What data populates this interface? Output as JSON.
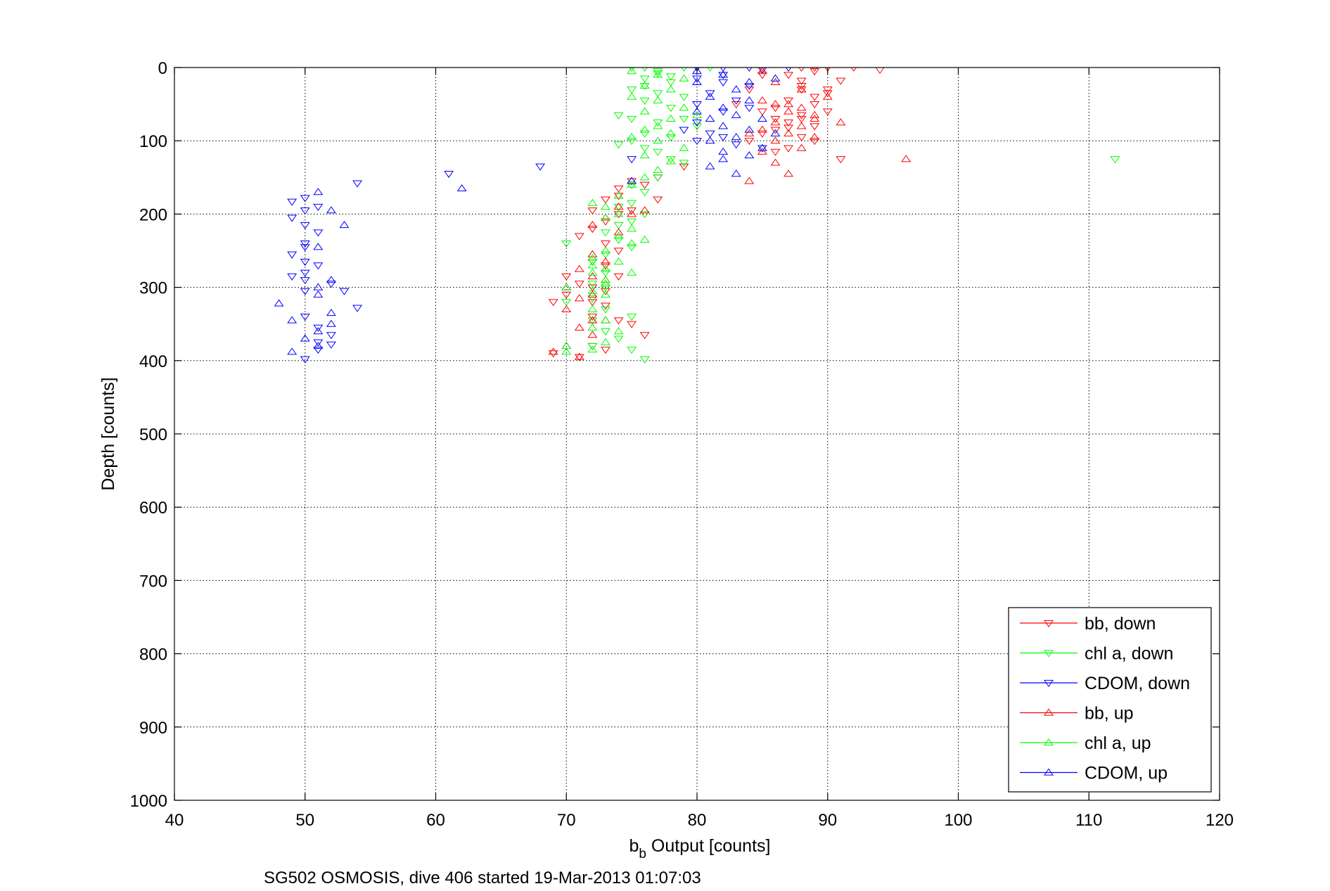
{
  "chart_data": {
    "type": "scatter",
    "title": "",
    "subtitle": "SG502 OSMOSIS, dive 406 started 19-Mar-2013 01:07:03",
    "xlabel_main": "b",
    "xlabel_sub": "b",
    "xlabel_rest": " Output [counts]",
    "ylabel": "Depth [counts]",
    "xlim": [
      40,
      120
    ],
    "ylim": [
      0,
      1000
    ],
    "y_reversed": true,
    "grid": true,
    "legend_position": "bottom-right",
    "x_ticks": [
      40,
      50,
      60,
      70,
      80,
      90,
      100,
      110,
      120
    ],
    "x_tick_labels": [
      "40",
      "50",
      "60",
      "70",
      "80",
      "90",
      "100",
      "110",
      "120"
    ],
    "y_ticks": [
      0,
      100,
      200,
      300,
      400,
      500,
      600,
      700,
      800,
      900,
      1000
    ],
    "y_tick_labels": [
      "0",
      "100",
      "200",
      "300",
      "400",
      "500",
      "600",
      "700",
      "800",
      "900",
      "1000"
    ],
    "series": [
      {
        "name": "bb, down",
        "color": "#ff0000",
        "marker": "triangle-down",
        "points": [
          [
            88,
            0
          ],
          [
            89,
            0
          ],
          [
            90,
            0
          ],
          [
            92,
            0
          ],
          [
            94,
            3
          ],
          [
            85,
            0
          ],
          [
            87,
            10
          ],
          [
            88,
            18
          ],
          [
            89,
            5
          ],
          [
            91,
            18
          ],
          [
            90,
            30
          ],
          [
            88,
            25
          ],
          [
            89,
            40
          ],
          [
            90,
            35
          ],
          [
            87,
            45
          ],
          [
            86,
            55
          ],
          [
            85,
            60
          ],
          [
            88,
            70
          ],
          [
            87,
            75
          ],
          [
            89,
            80
          ],
          [
            86,
            85
          ],
          [
            88,
            95
          ],
          [
            85,
            90
          ],
          [
            84,
            100
          ],
          [
            89,
            100
          ],
          [
            87,
            110
          ],
          [
            86,
            115
          ],
          [
            91,
            125
          ],
          [
            79,
            135
          ],
          [
            77,
            150
          ],
          [
            75,
            155
          ],
          [
            76,
            160
          ],
          [
            77,
            180
          ],
          [
            74,
            165
          ],
          [
            74,
            175
          ],
          [
            75,
            195
          ],
          [
            73,
            180
          ],
          [
            74,
            200
          ],
          [
            72,
            195
          ],
          [
            73,
            210
          ],
          [
            72,
            220
          ],
          [
            71,
            230
          ],
          [
            73,
            240
          ],
          [
            74,
            250
          ],
          [
            72,
            265
          ],
          [
            73,
            270
          ],
          [
            74,
            285
          ],
          [
            70,
            285
          ],
          [
            72,
            300
          ],
          [
            73,
            305
          ],
          [
            71,
            295
          ],
          [
            72,
            320
          ],
          [
            70,
            310
          ],
          [
            69,
            320
          ],
          [
            73,
            325
          ],
          [
            72,
            340
          ],
          [
            74,
            345
          ],
          [
            75,
            350
          ],
          [
            76,
            365
          ],
          [
            72,
            380
          ],
          [
            73,
            385
          ],
          [
            71,
            395
          ],
          [
            69,
            390
          ],
          [
            85,
            10
          ],
          [
            84,
            30
          ],
          [
            83,
            50
          ],
          [
            86,
            70
          ],
          [
            88,
            65
          ],
          [
            87,
            82
          ],
          [
            89,
            50
          ],
          [
            90,
            60
          ],
          [
            88,
            30
          ]
        ]
      },
      {
        "name": "chl a, down",
        "color": "#00ff00",
        "marker": "triangle-down",
        "points": [
          [
            75,
            0
          ],
          [
            76,
            0
          ],
          [
            77,
            5
          ],
          [
            79,
            0
          ],
          [
            81,
            0
          ],
          [
            76,
            15
          ],
          [
            78,
            20
          ],
          [
            75,
            30
          ],
          [
            77,
            35
          ],
          [
            79,
            40
          ],
          [
            76,
            45
          ],
          [
            74,
            65
          ],
          [
            75,
            70
          ],
          [
            77,
            75
          ],
          [
            76,
            90
          ],
          [
            78,
            95
          ],
          [
            75,
            100
          ],
          [
            74,
            105
          ],
          [
            76,
            110
          ],
          [
            77,
            115
          ],
          [
            78,
            125
          ],
          [
            79,
            130
          ],
          [
            77,
            150
          ],
          [
            75,
            160
          ],
          [
            76,
            170
          ],
          [
            75,
            185
          ],
          [
            74,
            190
          ],
          [
            76,
            200
          ],
          [
            75,
            210
          ],
          [
            74,
            215
          ],
          [
            73,
            225
          ],
          [
            74,
            235
          ],
          [
            75,
            245
          ],
          [
            73,
            255
          ],
          [
            72,
            265
          ],
          [
            73,
            280
          ],
          [
            72,
            295
          ],
          [
            73,
            300
          ],
          [
            72,
            315
          ],
          [
            73,
            330
          ],
          [
            72,
            345
          ],
          [
            75,
            340
          ],
          [
            73,
            360
          ],
          [
            74,
            370
          ],
          [
            72,
            380
          ],
          [
            75,
            385
          ],
          [
            76,
            398
          ],
          [
            70,
            240
          ],
          [
            70,
            320
          ],
          [
            112,
            125
          ],
          [
            78,
            55
          ],
          [
            79,
            70
          ],
          [
            80,
            80
          ],
          [
            76,
            25
          ],
          [
            77,
            8
          ],
          [
            78,
            12
          ]
        ]
      },
      {
        "name": "CDOM, down",
        "color": "#0000ff",
        "marker": "triangle-down",
        "points": [
          [
            80,
            0
          ],
          [
            82,
            0
          ],
          [
            84,
            0
          ],
          [
            85,
            3
          ],
          [
            87,
            0
          ],
          [
            80,
            15
          ],
          [
            82,
            20
          ],
          [
            81,
            35
          ],
          [
            83,
            45
          ],
          [
            80,
            50
          ],
          [
            82,
            60
          ],
          [
            84,
            55
          ],
          [
            80,
            75
          ],
          [
            79,
            85
          ],
          [
            81,
            90
          ],
          [
            80,
            100
          ],
          [
            82,
            95
          ],
          [
            83,
            105
          ],
          [
            85,
            110
          ],
          [
            75,
            125
          ],
          [
            68,
            135
          ],
          [
            61,
            145
          ],
          [
            54,
            158
          ],
          [
            50,
            178
          ],
          [
            49,
            183
          ],
          [
            51,
            190
          ],
          [
            50,
            195
          ],
          [
            49,
            205
          ],
          [
            50,
            215
          ],
          [
            51,
            225
          ],
          [
            50,
            240
          ],
          [
            50,
            245
          ],
          [
            49,
            255
          ],
          [
            50,
            265
          ],
          [
            51,
            270
          ],
          [
            50,
            280
          ],
          [
            49,
            285
          ],
          [
            50,
            290
          ],
          [
            52,
            295
          ],
          [
            50,
            305
          ],
          [
            53,
            305
          ],
          [
            54,
            328
          ],
          [
            50,
            340
          ],
          [
            51,
            355
          ],
          [
            52,
            365
          ],
          [
            51,
            375
          ],
          [
            52,
            378
          ],
          [
            50,
            398
          ],
          [
            51,
            385
          ],
          [
            82,
            10
          ],
          [
            84,
            25
          ]
        ]
      },
      {
        "name": "bb, up",
        "color": "#ff0000",
        "marker": "triangle-up",
        "points": [
          [
            85,
            5
          ],
          [
            86,
            20
          ],
          [
            88,
            30
          ],
          [
            90,
            40
          ],
          [
            87,
            50
          ],
          [
            85,
            45
          ],
          [
            88,
            55
          ],
          [
            89,
            70
          ],
          [
            91,
            75
          ],
          [
            86,
            75
          ],
          [
            85,
            85
          ],
          [
            87,
            90
          ],
          [
            89,
            95
          ],
          [
            84,
            90
          ],
          [
            86,
            100
          ],
          [
            88,
            110
          ],
          [
            85,
            115
          ],
          [
            86,
            130
          ],
          [
            87,
            145
          ],
          [
            84,
            155
          ],
          [
            96,
            125
          ],
          [
            76,
            195
          ],
          [
            74,
            190
          ],
          [
            75,
            200
          ],
          [
            73,
            205
          ],
          [
            72,
            215
          ],
          [
            74,
            225
          ],
          [
            72,
            255
          ],
          [
            73,
            265
          ],
          [
            71,
            275
          ],
          [
            72,
            285
          ],
          [
            73,
            290
          ],
          [
            70,
            300
          ],
          [
            72,
            310
          ],
          [
            71,
            315
          ],
          [
            70,
            330
          ],
          [
            72,
            345
          ],
          [
            71,
            355
          ],
          [
            73,
            345
          ],
          [
            72,
            365
          ],
          [
            70,
            380
          ],
          [
            69,
            388
          ],
          [
            71,
            395
          ],
          [
            86,
            50
          ],
          [
            87,
            60
          ],
          [
            89,
            65
          ],
          [
            88,
            80
          ]
        ]
      },
      {
        "name": "chl a, up",
        "color": "#00ff00",
        "marker": "triangle-up",
        "points": [
          [
            75,
            5
          ],
          [
            77,
            10
          ],
          [
            79,
            15
          ],
          [
            76,
            25
          ],
          [
            78,
            30
          ],
          [
            75,
            40
          ],
          [
            77,
            45
          ],
          [
            79,
            55
          ],
          [
            76,
            60
          ],
          [
            78,
            70
          ],
          [
            80,
            65
          ],
          [
            77,
            80
          ],
          [
            76,
            85
          ],
          [
            78,
            90
          ],
          [
            75,
            95
          ],
          [
            77,
            100
          ],
          [
            79,
            110
          ],
          [
            76,
            120
          ],
          [
            78,
            128
          ],
          [
            77,
            140
          ],
          [
            76,
            150
          ],
          [
            75,
            160
          ],
          [
            74,
            175
          ],
          [
            73,
            190
          ],
          [
            72,
            185
          ],
          [
            74,
            200
          ],
          [
            73,
            205
          ],
          [
            75,
            220
          ],
          [
            74,
            230
          ],
          [
            76,
            235
          ],
          [
            75,
            240
          ],
          [
            73,
            250
          ],
          [
            72,
            260
          ],
          [
            74,
            265
          ],
          [
            72,
            270
          ],
          [
            73,
            275
          ],
          [
            72,
            280
          ],
          [
            75,
            280
          ],
          [
            73,
            295
          ],
          [
            72,
            305
          ],
          [
            73,
            310
          ],
          [
            72,
            330
          ],
          [
            73,
            345
          ],
          [
            72,
            355
          ],
          [
            74,
            360
          ],
          [
            73,
            375
          ],
          [
            72,
            385
          ],
          [
            70,
            380
          ],
          [
            70,
            388
          ],
          [
            70,
            300
          ],
          [
            73,
            290
          ]
        ]
      },
      {
        "name": "CDOM, up",
        "color": "#0000ff",
        "marker": "triangle-up",
        "points": [
          [
            80,
            5
          ],
          [
            82,
            10
          ],
          [
            84,
            20
          ],
          [
            86,
            15
          ],
          [
            83,
            30
          ],
          [
            81,
            40
          ],
          [
            84,
            45
          ],
          [
            82,
            55
          ],
          [
            80,
            60
          ],
          [
            83,
            65
          ],
          [
            85,
            70
          ],
          [
            82,
            80
          ],
          [
            84,
            85
          ],
          [
            86,
            90
          ],
          [
            83,
            95
          ],
          [
            81,
            100
          ],
          [
            82,
            115
          ],
          [
            84,
            120
          ],
          [
            85,
            110
          ],
          [
            82,
            125
          ],
          [
            81,
            135
          ],
          [
            83,
            145
          ],
          [
            75,
            155
          ],
          [
            62,
            165
          ],
          [
            51,
            170
          ],
          [
            52,
            195
          ],
          [
            53,
            215
          ],
          [
            51,
            245
          ],
          [
            52,
            290
          ],
          [
            51,
            300
          ],
          [
            51,
            310
          ],
          [
            48,
            322
          ],
          [
            52,
            335
          ],
          [
            52,
            350
          ],
          [
            49,
            345
          ],
          [
            51,
            360
          ],
          [
            50,
            370
          ],
          [
            51,
            380
          ],
          [
            49,
            388
          ],
          [
            80,
            20
          ],
          [
            81,
            70
          ]
        ]
      }
    ]
  }
}
